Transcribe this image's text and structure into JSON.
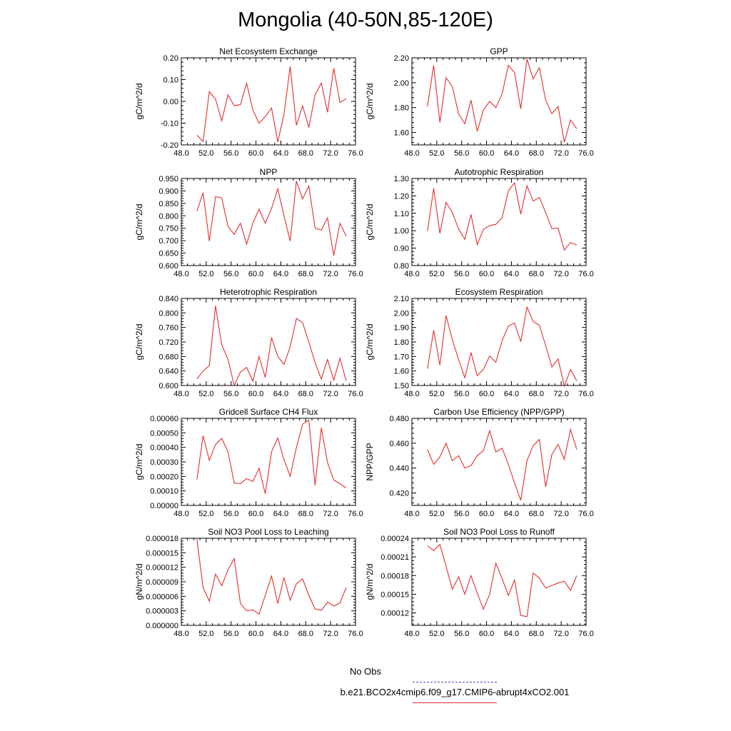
{
  "title": "Mongolia (40-50N,85-120E)",
  "legend": {
    "obs_label": "No Obs",
    "case_label": "b.e21.BCO2x4cmip6.f09_g17.CMIP6-abrupt4xCO2.001",
    "obs_color": "#4a4ab8",
    "case_color": "#e03030"
  },
  "chart_data": [
    {
      "type": "line",
      "title": "Net Ecosystem Exchange",
      "ylabel": "gC/m^2/d",
      "xlim": [
        48,
        76
      ],
      "ylim": [
        -0.2,
        0.2
      ],
      "ydec": 2,
      "xticks": [
        48,
        52,
        56,
        60,
        64,
        68,
        72,
        76
      ],
      "yticks": [
        -0.2,
        -0.1,
        0.0,
        0.1,
        0.2
      ],
      "x": [
        50.5,
        51.5,
        52.5,
        53.5,
        54.5,
        55.5,
        56.5,
        57.5,
        58.5,
        59.5,
        60.5,
        61.5,
        62.5,
        63.5,
        64.5,
        65.5,
        66.5,
        67.5,
        68.5,
        69.5,
        70.5,
        71.5,
        72.5,
        73.5,
        74.5
      ],
      "y": [
        -0.155,
        -0.185,
        0.045,
        0.01,
        -0.09,
        0.03,
        -0.02,
        -0.015,
        0.083,
        -0.04,
        -0.1,
        -0.07,
        -0.03,
        -0.187,
        -0.06,
        0.16,
        -0.11,
        -0.02,
        -0.12,
        0.03,
        0.085,
        -0.05,
        0.152,
        -0.005,
        0.012
      ]
    },
    {
      "type": "line",
      "title": "GPP",
      "ylabel": "gC/m^2/d",
      "xlim": [
        48,
        76
      ],
      "ylim": [
        1.5,
        2.2
      ],
      "ydec": 2,
      "xticks": [
        48,
        52,
        56,
        60,
        64,
        68,
        72,
        76
      ],
      "yticks": [
        1.6,
        1.8,
        2.0,
        2.2
      ],
      "x": [
        50.5,
        51.5,
        52.5,
        53.5,
        54.5,
        55.5,
        56.5,
        57.5,
        58.5,
        59.5,
        60.5,
        61.5,
        62.5,
        63.5,
        64.5,
        65.5,
        66.5,
        67.5,
        68.5,
        69.5,
        70.5,
        71.5,
        72.5,
        73.5,
        74.5
      ],
      "y": [
        1.81,
        2.14,
        1.68,
        2.04,
        1.97,
        1.75,
        1.67,
        1.86,
        1.61,
        1.78,
        1.85,
        1.8,
        1.91,
        2.14,
        2.08,
        1.79,
        2.19,
        2.03,
        2.12,
        1.86,
        1.75,
        1.81,
        1.52,
        1.7,
        1.63
      ]
    },
    {
      "type": "line",
      "title": "NPP",
      "ylabel": "gC/m^2/d",
      "xlim": [
        48,
        76
      ],
      "ylim": [
        0.6,
        0.95
      ],
      "ydec": 3,
      "xticks": [
        48,
        52,
        56,
        60,
        64,
        68,
        72,
        76
      ],
      "yticks": [
        0.6,
        0.65,
        0.7,
        0.75,
        0.8,
        0.85,
        0.9,
        0.95
      ],
      "x": [
        50.5,
        51.5,
        52.5,
        53.5,
        54.5,
        55.5,
        56.5,
        57.5,
        58.5,
        59.5,
        60.5,
        61.5,
        62.5,
        63.5,
        64.5,
        65.5,
        66.5,
        67.5,
        68.5,
        69.5,
        70.5,
        71.5,
        72.5,
        73.5,
        74.5
      ],
      "y": [
        0.818,
        0.893,
        0.698,
        0.877,
        0.872,
        0.757,
        0.725,
        0.77,
        0.686,
        0.77,
        0.827,
        0.77,
        0.83,
        0.908,
        0.8,
        0.698,
        0.94,
        0.868,
        0.92,
        0.75,
        0.742,
        0.792,
        0.64,
        0.77,
        0.718
      ]
    },
    {
      "type": "line",
      "title": "Autotrophic Respiration",
      "ylabel": "gC/m^2/d",
      "xlim": [
        48,
        76
      ],
      "ylim": [
        0.8,
        1.3
      ],
      "ydec": 2,
      "xticks": [
        48,
        52,
        56,
        60,
        64,
        68,
        72,
        76
      ],
      "yticks": [
        0.8,
        0.9,
        1.0,
        1.1,
        1.2,
        1.3
      ],
      "x": [
        50.5,
        51.5,
        52.5,
        53.5,
        54.5,
        55.5,
        56.5,
        57.5,
        58.5,
        59.5,
        60.5,
        61.5,
        62.5,
        63.5,
        64.5,
        65.5,
        66.5,
        67.5,
        68.5,
        69.5,
        70.5,
        71.5,
        72.5,
        73.5,
        74.5
      ],
      "y": [
        0.998,
        1.243,
        0.985,
        1.163,
        1.104,
        1.01,
        0.951,
        1.093,
        0.92,
        1.008,
        1.03,
        1.037,
        1.075,
        1.23,
        1.275,
        1.095,
        1.258,
        1.17,
        1.192,
        1.104,
        1.012,
        1.015,
        0.888,
        0.932,
        0.918
      ]
    },
    {
      "type": "line",
      "title": "Heterotrophic Respiration",
      "ylabel": "gC/m^2/d",
      "xlim": [
        48,
        76
      ],
      "ylim": [
        0.6,
        0.84
      ],
      "ydec": 3,
      "xticks": [
        48,
        52,
        56,
        60,
        64,
        68,
        72,
        76
      ],
      "yticks": [
        0.6,
        0.64,
        0.68,
        0.72,
        0.76,
        0.8,
        0.84
      ],
      "x": [
        50.5,
        51.5,
        52.5,
        53.5,
        54.5,
        55.5,
        56.5,
        57.5,
        58.5,
        59.5,
        60.5,
        61.5,
        62.5,
        63.5,
        64.5,
        65.5,
        66.5,
        67.5,
        68.5,
        69.5,
        70.5,
        71.5,
        72.5,
        73.5,
        74.5
      ],
      "y": [
        0.618,
        0.64,
        0.655,
        0.82,
        0.712,
        0.672,
        0.6,
        0.637,
        0.65,
        0.612,
        0.68,
        0.622,
        0.732,
        0.68,
        0.658,
        0.706,
        0.785,
        0.773,
        0.72,
        0.663,
        0.618,
        0.672,
        0.615,
        0.675,
        0.613
      ]
    },
    {
      "type": "line",
      "title": "Ecosystem Respiration",
      "ylabel": "gC/m^2/d",
      "xlim": [
        48,
        76
      ],
      "ylim": [
        1.5,
        2.1
      ],
      "ydec": 2,
      "xticks": [
        48,
        52,
        56,
        60,
        64,
        68,
        72,
        76
      ],
      "yticks": [
        1.5,
        1.6,
        1.7,
        1.8,
        1.9,
        2.0,
        2.1
      ],
      "x": [
        50.5,
        51.5,
        52.5,
        53.5,
        54.5,
        55.5,
        56.5,
        57.5,
        58.5,
        59.5,
        60.5,
        61.5,
        62.5,
        63.5,
        64.5,
        65.5,
        66.5,
        67.5,
        68.5,
        69.5,
        70.5,
        71.5,
        72.5,
        73.5,
        74.5
      ],
      "y": [
        1.615,
        1.88,
        1.64,
        1.982,
        1.815,
        1.68,
        1.553,
        1.727,
        1.568,
        1.612,
        1.703,
        1.66,
        1.81,
        1.91,
        1.93,
        1.802,
        2.04,
        1.94,
        1.915,
        1.775,
        1.628,
        1.683,
        1.497,
        1.61,
        1.533
      ]
    },
    {
      "type": "line",
      "title": "Gridcell Surface CH4 Flux",
      "ylabel": "gC/m^2/d",
      "xlim": [
        48,
        76
      ],
      "ylim": [
        0.0,
        0.0006
      ],
      "ydec": 5,
      "xticks": [
        48,
        52,
        56,
        60,
        64,
        68,
        72,
        76
      ],
      "yticks": [
        0.0,
        0.0001,
        0.0002,
        0.0003,
        0.0004,
        0.0005,
        0.0006
      ],
      "x": [
        50.5,
        51.5,
        52.5,
        53.5,
        54.5,
        55.5,
        56.5,
        57.5,
        58.5,
        59.5,
        60.5,
        61.5,
        62.5,
        63.5,
        64.5,
        65.5,
        66.5,
        67.5,
        68.5,
        69.5,
        70.5,
        71.5,
        72.5,
        73.5,
        74.5
      ],
      "y": [
        0.000178,
        0.00048,
        0.00031,
        0.00042,
        0.000462,
        0.00037,
        0.000155,
        0.00015,
        0.000185,
        0.000165,
        0.000255,
        8e-05,
        0.00037,
        0.000465,
        0.000315,
        0.0002,
        0.0004,
        0.00056,
        0.000588,
        0.000138,
        0.000535,
        0.000295,
        0.000175,
        0.00015,
        0.00012
      ]
    },
    {
      "type": "line",
      "title": "Carbon Use Efficiency (NPP/GPP)",
      "ylabel": "NPP/GPP",
      "xlim": [
        48,
        76
      ],
      "ylim": [
        0.41,
        0.48
      ],
      "ydec": 3,
      "xticks": [
        48,
        52,
        56,
        60,
        64,
        68,
        72,
        76
      ],
      "yticks": [
        0.42,
        0.44,
        0.46,
        0.48
      ],
      "x": [
        50.5,
        51.5,
        52.5,
        53.5,
        54.5,
        55.5,
        56.5,
        57.5,
        58.5,
        59.5,
        60.5,
        61.5,
        62.5,
        63.5,
        64.5,
        65.5,
        66.5,
        67.5,
        68.5,
        69.5,
        70.5,
        71.5,
        72.5,
        73.5,
        74.5
      ],
      "y": [
        0.455,
        0.443,
        0.449,
        0.46,
        0.446,
        0.45,
        0.44,
        0.442,
        0.45,
        0.454,
        0.47,
        0.453,
        0.456,
        0.443,
        0.428,
        0.414,
        0.446,
        0.458,
        0.463,
        0.425,
        0.451,
        0.459,
        0.447,
        0.471,
        0.455
      ]
    },
    {
      "type": "line",
      "title": "Soil NO3 Pool Loss to Leaching",
      "ylabel": "gN/m^2/d",
      "xlim": [
        48,
        76
      ],
      "ylim": [
        0.0,
        1.8e-05
      ],
      "ydec": 6,
      "xticks": [
        48,
        52,
        56,
        60,
        64,
        68,
        72,
        76
      ],
      "yticks": [
        0.0,
        3e-06,
        6e-06,
        9e-06,
        1.2e-05,
        1.5e-05,
        1.8e-05
      ],
      "x": [
        50.5,
        51.5,
        52.5,
        53.5,
        54.5,
        55.5,
        56.5,
        57.5,
        58.5,
        59.5,
        60.5,
        61.5,
        62.5,
        63.5,
        64.5,
        65.5,
        66.5,
        67.5,
        68.5,
        69.5,
        70.5,
        71.5,
        72.5,
        73.5,
        74.5
      ],
      "y": [
        1.78e-05,
        7.8e-06,
        5e-06,
        1.06e-05,
        8.2e-06,
        1.15e-05,
        1.38e-05,
        4.5e-06,
        3e-06,
        3.2e-06,
        2.3e-06,
        6.2e-06,
        1.02e-05,
        4.5e-06,
        9.9e-06,
        5.2e-06,
        8.6e-06,
        9.6e-06,
        6.2e-06,
        3.4e-06,
        3.1e-06,
        4.8e-06,
        4e-06,
        4.6e-06,
        7.8e-06
      ]
    },
    {
      "type": "line",
      "title": "Soil NO3 Pool Loss to Runoff",
      "ylabel": "gN/m^2/d",
      "xlim": [
        48,
        76
      ],
      "ylim": [
        0.0001,
        0.00024
      ],
      "ydec": 5,
      "xticks": [
        48,
        52,
        56,
        60,
        64,
        68,
        72,
        76
      ],
      "yticks": [
        0.00012,
        0.00015,
        0.00018,
        0.00021,
        0.00024
      ],
      "x": [
        50.5,
        51.5,
        52.5,
        53.5,
        54.5,
        55.5,
        56.5,
        57.5,
        58.5,
        59.5,
        60.5,
        61.5,
        62.5,
        63.5,
        64.5,
        65.5,
        66.5,
        67.5,
        68.5,
        69.5,
        70.5,
        71.5,
        72.5,
        73.5,
        74.5
      ],
      "y": [
        0.000228,
        0.00022,
        0.00023,
        0.000195,
        0.000158,
        0.000178,
        0.00015,
        0.00018,
        0.000152,
        0.000126,
        0.00015,
        0.0002,
        0.000175,
        0.000148,
        0.000173,
        0.000116,
        0.000114,
        0.000184,
        0.000176,
        0.00016,
        0.000164,
        0.000168,
        0.000171,
        0.000156,
        0.00018
      ]
    }
  ]
}
